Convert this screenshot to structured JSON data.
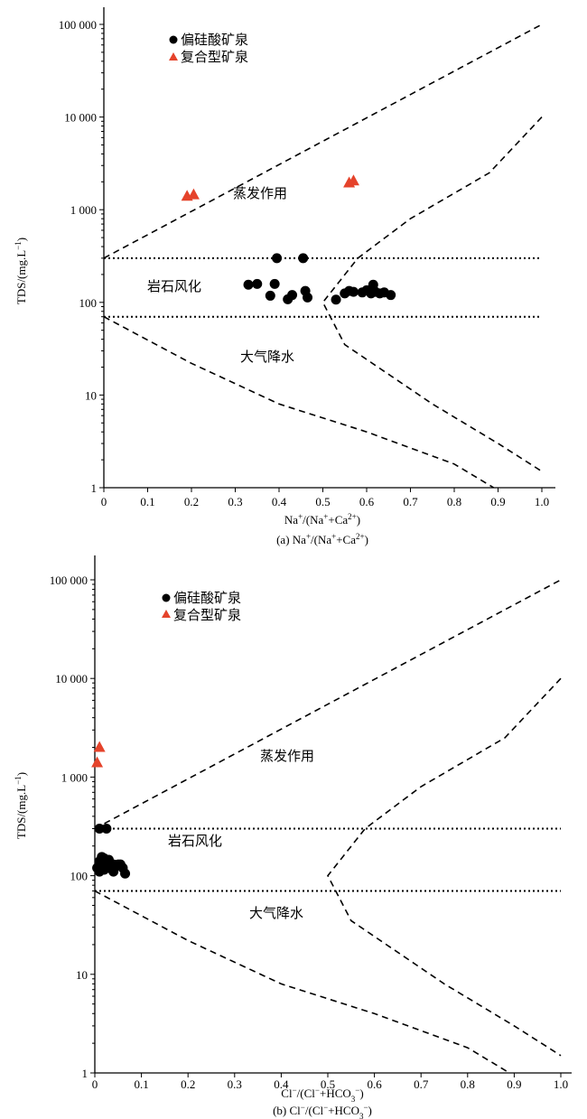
{
  "chart_data": [
    {
      "type": "scatter",
      "x_scale": "linear",
      "y_scale": "log",
      "xlim": [
        0,
        1.0
      ],
      "ylim": [
        1,
        100000
      ],
      "x_ticks": [
        "0",
        "0.1",
        "0.2",
        "0.3",
        "0.4",
        "0.5",
        "0.6",
        "0.7",
        "0.8",
        "0.9",
        "1.0"
      ],
      "y_ticks": [
        "1",
        "10",
        "100",
        "1 000",
        "10 000",
        "100 000"
      ],
      "xlabel_main": "Na",
      "xlabel_sup1": "+",
      "xlabel_mid": "/(Na",
      "xlabel_sup2": "+",
      "xlabel_mid2": "+Ca",
      "xlabel_sup3": "2+",
      "xlabel_end": ")",
      "ylabel": "TDS/(mg.L",
      "ylabel_sup": "−1",
      "ylabel_end": ")",
      "caption": "(a) Na",
      "caption_sup1": "+",
      "caption_mid": "/(Na",
      "caption_sup2": "+",
      "caption_mid2": "+Ca",
      "caption_sup3": "2+",
      "caption_end": ")",
      "legend": [
        {
          "label": "偏硅酸矿泉",
          "marker": "circle",
          "color": "#000000"
        },
        {
          "label": "复合型矿泉",
          "marker": "triangle",
          "color": "#e5432b"
        }
      ],
      "legend_position": "top-left",
      "regions": {
        "evaporation": "蒸发作用",
        "weathering": "岩石风化",
        "precipitation": "大气降水"
      },
      "series": [
        {
          "name": "偏硅酸矿泉",
          "marker": "circle",
          "x": [
            0.33,
            0.35,
            0.38,
            0.39,
            0.395,
            0.42,
            0.43,
            0.46,
            0.465,
            0.455,
            0.53,
            0.55,
            0.56,
            0.57,
            0.59,
            0.6,
            0.61,
            0.615,
            0.62,
            0.63,
            0.64,
            0.655
          ],
          "y": [
            155,
            158,
            118,
            158,
            300,
            108,
            120,
            133,
            113,
            300,
            107,
            125,
            133,
            130,
            128,
            135,
            125,
            155,
            130,
            125,
            128,
            120
          ]
        },
        {
          "name": "复合型矿泉",
          "marker": "triangle",
          "x": [
            0.19,
            0.205,
            0.56,
            0.57
          ],
          "y": [
            1400,
            1450,
            1950,
            2050
          ]
        }
      ],
      "reference_lines": [
        {
          "style": "dotted",
          "y": 300
        },
        {
          "style": "dotted",
          "y": 70
        }
      ],
      "grid": false
    },
    {
      "type": "scatter",
      "x_scale": "linear",
      "y_scale": "log",
      "xlim": [
        0,
        1.0
      ],
      "ylim": [
        1,
        100000
      ],
      "x_ticks": [
        "0",
        "0.1",
        "0.2",
        "0.3",
        "0.4",
        "0.5",
        "0.6",
        "0.7",
        "0.8",
        "0.9",
        "1.0"
      ],
      "y_ticks": [
        "1",
        "10",
        "100",
        "1 000",
        "10 000",
        "100 000"
      ],
      "xlabel_main": "Cl",
      "xlabel_sup1": "−",
      "xlabel_mid": "/(Cl",
      "xlabel_sup2": "−",
      "xlabel_mid2": "+HCO",
      "xlabel_sub": "3",
      "xlabel_sup3": "−",
      "xlabel_end": ")",
      "ylabel": "TDS/(mg.L",
      "ylabel_sup": "−1",
      "ylabel_end": ")",
      "caption": "(b) Cl",
      "caption_sup1": "−",
      "caption_mid": "/(Cl",
      "caption_sup2": "−",
      "caption_mid2": "+HCO",
      "caption_sub": "3",
      "caption_sup3": "−",
      "caption_end": ")",
      "legend": [
        {
          "label": "偏硅酸矿泉",
          "marker": "circle",
          "color": "#000000"
        },
        {
          "label": "复合型矿泉",
          "marker": "triangle",
          "color": "#e5432b"
        }
      ],
      "legend_position": "top-left",
      "regions": {
        "evaporation": "蒸发作用",
        "weathering": "岩石风化",
        "precipitation": "大气降水"
      },
      "series": [
        {
          "name": "偏硅酸矿泉",
          "marker": "circle",
          "x": [
            0.01,
            0.025,
            0.005,
            0.01,
            0.015,
            0.02,
            0.025,
            0.03,
            0.035,
            0.04,
            0.045,
            0.05,
            0.01,
            0.02,
            0.03,
            0.04,
            0.055,
            0.06,
            0.065,
            0.015,
            0.025
          ],
          "y": [
            300,
            300,
            120,
            140,
            155,
            150,
            130,
            145,
            120,
            130,
            125,
            130,
            110,
            115,
            120,
            110,
            130,
            120,
            105,
            125,
            135
          ]
        },
        {
          "name": "复合型矿泉",
          "marker": "triangle",
          "x": [
            0.005,
            0.01
          ],
          "y": [
            1400,
            2000
          ]
        }
      ],
      "reference_lines": [
        {
          "style": "dotted",
          "y": 300
        },
        {
          "style": "dotted",
          "y": 70
        }
      ],
      "grid": false
    }
  ]
}
